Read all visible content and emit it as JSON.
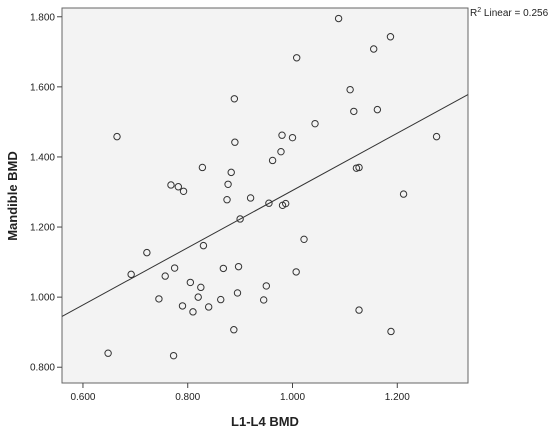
{
  "chart_data": {
    "type": "scatter",
    "xlabel": "L1-L4 BMD",
    "ylabel": "Mandible BMD",
    "xlim": [
      0.56,
      1.335
    ],
    "ylim": [
      0.755,
      1.825
    ],
    "xticks": [
      "0.600",
      "0.800",
      "1.000",
      "1.200"
    ],
    "xtick_values": [
      0.6,
      0.8,
      1.0,
      1.2
    ],
    "yticks": [
      "0.800",
      "1.000",
      "1.200",
      "1.400",
      "1.600",
      "1.800"
    ],
    "ytick_values": [
      0.8,
      1.0,
      1.2,
      1.4,
      1.6,
      1.8
    ],
    "grid": false,
    "plot_background": "#f3f3f3",
    "fit_line": {
      "label_prefix": "R",
      "label_sup": "2",
      "label_suffix": " Linear = 0.256",
      "x0": 0.56,
      "y0": 0.945,
      "x1": 1.335,
      "y1": 1.578
    },
    "points": [
      {
        "x": 0.648,
        "y": 0.84
      },
      {
        "x": 0.665,
        "y": 1.458
      },
      {
        "x": 0.692,
        "y": 1.065
      },
      {
        "x": 0.722,
        "y": 1.127
      },
      {
        "x": 0.745,
        "y": 0.995
      },
      {
        "x": 0.757,
        "y": 1.06
      },
      {
        "x": 0.768,
        "y": 1.32
      },
      {
        "x": 0.773,
        "y": 0.833
      },
      {
        "x": 0.775,
        "y": 1.083
      },
      {
        "x": 0.782,
        "y": 1.315
      },
      {
        "x": 0.79,
        "y": 0.975
      },
      {
        "x": 0.792,
        "y": 1.302
      },
      {
        "x": 0.805,
        "y": 1.042
      },
      {
        "x": 0.81,
        "y": 0.958
      },
      {
        "x": 0.82,
        "y": 1.0
      },
      {
        "x": 0.825,
        "y": 1.028
      },
      {
        "x": 0.828,
        "y": 1.37
      },
      {
        "x": 0.83,
        "y": 1.147
      },
      {
        "x": 0.84,
        "y": 0.972
      },
      {
        "x": 0.863,
        "y": 0.993
      },
      {
        "x": 0.868,
        "y": 1.082
      },
      {
        "x": 0.875,
        "y": 1.278
      },
      {
        "x": 0.877,
        "y": 1.322
      },
      {
        "x": 0.883,
        "y": 1.356
      },
      {
        "x": 0.888,
        "y": 0.907
      },
      {
        "x": 0.889,
        "y": 1.566
      },
      {
        "x": 0.89,
        "y": 1.442
      },
      {
        "x": 0.895,
        "y": 1.012
      },
      {
        "x": 0.897,
        "y": 1.087
      },
      {
        "x": 0.9,
        "y": 1.223
      },
      {
        "x": 0.92,
        "y": 1.283
      },
      {
        "x": 0.945,
        "y": 0.992
      },
      {
        "x": 0.95,
        "y": 1.032
      },
      {
        "x": 0.955,
        "y": 1.268
      },
      {
        "x": 0.962,
        "y": 1.39
      },
      {
        "x": 0.978,
        "y": 1.415
      },
      {
        "x": 0.98,
        "y": 1.462
      },
      {
        "x": 0.981,
        "y": 1.262
      },
      {
        "x": 0.987,
        "y": 1.267
      },
      {
        "x": 1.0,
        "y": 1.455
      },
      {
        "x": 1.007,
        "y": 1.072
      },
      {
        "x": 1.008,
        "y": 1.683
      },
      {
        "x": 1.022,
        "y": 1.165
      },
      {
        "x": 1.043,
        "y": 1.495
      },
      {
        "x": 1.088,
        "y": 1.795
      },
      {
        "x": 1.11,
        "y": 1.592
      },
      {
        "x": 1.117,
        "y": 1.53
      },
      {
        "x": 1.122,
        "y": 1.368
      },
      {
        "x": 1.127,
        "y": 1.37
      },
      {
        "x": 1.127,
        "y": 0.963
      },
      {
        "x": 1.155,
        "y": 1.708
      },
      {
        "x": 1.162,
        "y": 1.535
      },
      {
        "x": 1.187,
        "y": 1.743
      },
      {
        "x": 1.188,
        "y": 0.902
      },
      {
        "x": 1.212,
        "y": 1.294
      },
      {
        "x": 1.275,
        "y": 1.458
      }
    ]
  }
}
